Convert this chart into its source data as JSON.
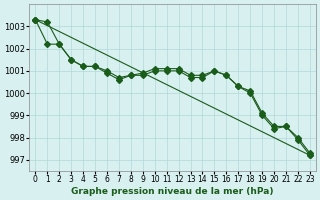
{
  "x": [
    0,
    1,
    2,
    3,
    4,
    5,
    6,
    7,
    8,
    9,
    10,
    11,
    12,
    13,
    14,
    15,
    16,
    17,
    18,
    19,
    20,
    21,
    22,
    23
  ],
  "series1": [
    1003.3,
    1003.2,
    1002.2,
    1001.5,
    1001.2,
    1001.2,
    1001.0,
    1000.7,
    1000.8,
    1000.8,
    1001.0,
    1001.0,
    1001.0,
    1000.7,
    1000.7,
    1001.0,
    1000.8,
    1000.3,
    1000.1,
    999.1,
    998.5,
    998.5,
    998.0,
    997.3
  ],
  "series2": [
    1003.3,
    1002.2,
    1002.2,
    1001.5,
    1001.2,
    1001.2,
    1000.9,
    1000.6,
    1000.8,
    1000.9,
    1001.1,
    1001.1,
    1001.1,
    1000.8,
    1000.8,
    1001.0,
    1000.8,
    1000.3,
    1000.0,
    999.0,
    998.4,
    998.5,
    997.9,
    997.2
  ],
  "series3": [
    1003.3,
    null,
    null,
    null,
    null,
    null,
    null,
    null,
    null,
    null,
    null,
    null,
    null,
    null,
    null,
    null,
    null,
    null,
    null,
    null,
    null,
    null,
    null,
    997.2
  ],
  "line_color": "#1a5c1a",
  "bg_color": "#d8f0f0",
  "grid_color": "#b0d8d8",
  "xlabel": "Graphe pression niveau de la mer (hPa)",
  "ylim": [
    996.5,
    1004.0
  ],
  "xlim": [
    -0.5,
    23.5
  ],
  "yticks": [
    997,
    998,
    999,
    1000,
    1001,
    1002,
    1003
  ],
  "xtick_labels": [
    "0",
    "1",
    "2",
    "3",
    "4",
    "5",
    "6",
    "7",
    "8",
    "9",
    "10",
    "11",
    "12",
    "13",
    "14",
    "15",
    "16",
    "17",
    "18",
    "19",
    "20",
    "21",
    "22",
    "23"
  ]
}
